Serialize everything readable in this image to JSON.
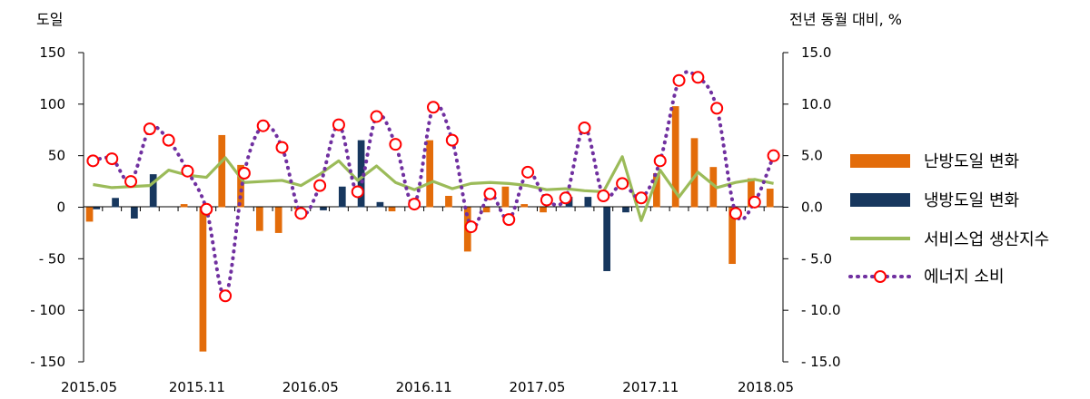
{
  "chart_data": {
    "type": "bar+line",
    "left_axis_label": "도일",
    "right_axis_label": "전년 동월 대비, %",
    "left_ylim": [
      -150,
      150
    ],
    "left_ticks": [
      150,
      100,
      50,
      0,
      -50,
      -100,
      -150
    ],
    "left_tick_labels": [
      "150",
      "100",
      "50",
      "0",
      "- 50",
      "- 100",
      "- 150"
    ],
    "right_ylim": [
      -15,
      15
    ],
    "right_ticks": [
      15,
      10,
      5,
      0,
      -5,
      -10,
      -15
    ],
    "right_tick_labels": [
      "15.0",
      "10.0",
      "5.0",
      "0.0",
      "- 5.0",
      "- 10.0",
      "- 15.0"
    ],
    "x_tick_labels": [
      "2015.05",
      "2015.11",
      "2016.05",
      "2016.11",
      "2017.05",
      "2017.11",
      "2018.05"
    ],
    "x_tick_positions": [
      0,
      6,
      12,
      18,
      24,
      30,
      36
    ],
    "categories": [
      "2015.05",
      "2015.06",
      "2015.07",
      "2015.08",
      "2015.09",
      "2015.10",
      "2015.11",
      "2015.12",
      "2016.01",
      "2016.02",
      "2016.03",
      "2016.04",
      "2016.05",
      "2016.06",
      "2016.07",
      "2016.08",
      "2016.09",
      "2016.10",
      "2016.11",
      "2016.12",
      "2017.01",
      "2017.02",
      "2017.03",
      "2017.04",
      "2017.05",
      "2017.06",
      "2017.07",
      "2017.08",
      "2017.09",
      "2017.10",
      "2017.11",
      "2017.12",
      "2018.01",
      "2018.02",
      "2018.03",
      "2018.04",
      "2018.05"
    ],
    "grid": false,
    "legend_position": "right",
    "series": [
      {
        "name": "난방도일 변화",
        "kind": "bar",
        "axis": "left",
        "color": "#E36C0A",
        "values": [
          -14,
          0,
          0,
          0,
          0,
          3,
          -140,
          70,
          41,
          -23,
          -25,
          -2,
          0,
          0,
          0,
          0,
          -4,
          0,
          65,
          11,
          -43,
          -5,
          20,
          3,
          -5,
          0,
          0,
          0,
          0,
          0,
          33,
          98,
          67,
          39,
          -55,
          28,
          18
        ]
      },
      {
        "name": "냉방도일 변화",
        "kind": "bar",
        "axis": "left",
        "color": "#17375E",
        "values": [
          -2,
          9,
          -11,
          32,
          0,
          0,
          0,
          0,
          0,
          0,
          0,
          0,
          -3,
          20,
          65,
          5,
          0,
          0,
          0,
          0,
          0,
          0,
          0,
          0,
          0,
          10,
          10,
          -62,
          -5,
          0,
          0,
          0,
          0,
          0,
          0,
          0,
          0
        ]
      },
      {
        "name": "서비스업 생산지수",
        "kind": "line",
        "axis": "right",
        "color": "#9BBB59",
        "values": [
          2.2,
          1.9,
          2.0,
          2.1,
          3.6,
          3.1,
          2.9,
          4.8,
          2.4,
          2.5,
          2.6,
          2.1,
          3.2,
          4.5,
          2.6,
          4.0,
          2.4,
          1.7,
          2.5,
          1.8,
          2.3,
          2.4,
          2.3,
          2.1,
          1.7,
          1.8,
          1.6,
          1.5,
          4.9,
          -1.3,
          3.6,
          1.0,
          3.4,
          1.9,
          2.4,
          2.7,
          2.3
        ]
      },
      {
        "name": "에너지 소비",
        "kind": "dotted-line-markers",
        "axis": "right",
        "color": "#7030A0",
        "marker_color": "#FF0000",
        "values": [
          4.5,
          4.7,
          2.5,
          7.6,
          6.5,
          3.5,
          -0.2,
          -8.6,
          3.3,
          7.9,
          5.8,
          -0.6,
          2.1,
          8.0,
          1.5,
          8.8,
          6.1,
          0.3,
          9.7,
          6.5,
          -1.9,
          1.3,
          -1.2,
          3.4,
          0.7,
          0.9,
          7.7,
          1.1,
          2.3,
          0.9,
          4.5,
          12.3,
          12.6,
          9.6,
          -0.6,
          0.5,
          5.0
        ]
      }
    ]
  }
}
